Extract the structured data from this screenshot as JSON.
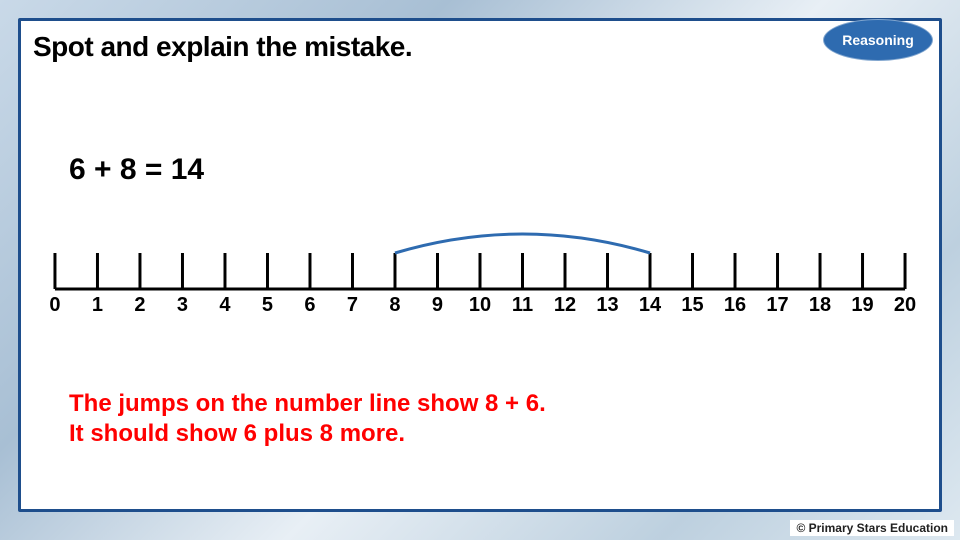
{
  "frame_border_color": "#1e4e8c",
  "title": "Spot and explain the mistake.",
  "title_color": "#000000",
  "badge": {
    "label": "Reasoning",
    "bg": "#2e6bb0",
    "text_color": "#ffffff"
  },
  "equation": "6 + 8 = 14",
  "numberline": {
    "min": 0,
    "max": 20,
    "ticks": [
      0,
      1,
      2,
      3,
      4,
      5,
      6,
      7,
      8,
      9,
      10,
      11,
      12,
      13,
      14,
      15,
      16,
      17,
      18,
      19,
      20
    ],
    "axis_color": "#000000",
    "axis_width": 3,
    "tick_height": 36,
    "tick_width": 3,
    "label_fontsize": 20,
    "arc": {
      "from": 8,
      "to": 14,
      "color": "#2e6bb0",
      "width": 3
    }
  },
  "explanation": {
    "line1": "The jumps on the number line show 8 + 6.",
    "line2": "It should show 6 plus 8 more.",
    "color": "#ff0000"
  },
  "footer": "© Primary Stars Education"
}
